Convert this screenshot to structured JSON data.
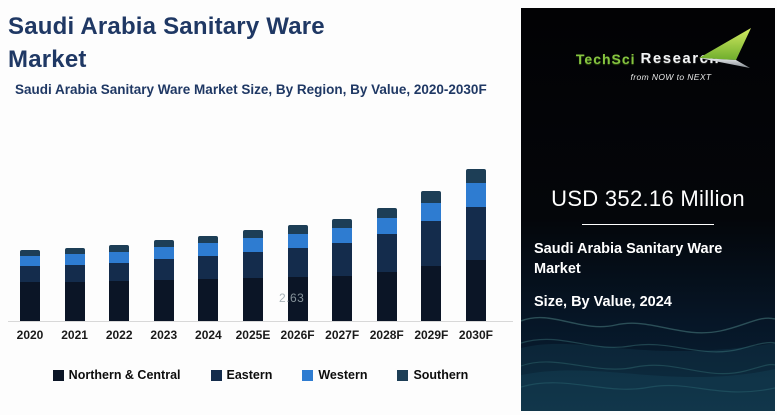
{
  "header": {
    "title_line1": "Saudi Arabia Sanitary Ware",
    "title_line2": "Market",
    "subtitle": "Saudi Arabia Sanitary Ware Market Size, By Region, By Value, 2020-2030F",
    "title_color": "#1f3864"
  },
  "chart_data": {
    "type": "bar",
    "stacked": true,
    "title": "Saudi Arabia Sanitary Ware Market Size, By Region, By Value, 2020-2030F",
    "unit": "USD Million",
    "categories": [
      "2020",
      "2021",
      "2022",
      "2023",
      "2024",
      "2025E",
      "2026F",
      "2027F",
      "2028F",
      "2029F",
      "2030F"
    ],
    "series": [
      {
        "name": "Northern & Central",
        "color": "#0b1526",
        "values": [
          162,
          162,
          166,
          170,
          174.16,
          178,
          182,
          186,
          203,
          228,
          253
        ]
      },
      {
        "name": "Eastern",
        "color": "#142c4c",
        "values": [
          66,
          70,
          75,
          87,
          95,
          108,
          120,
          137,
          157,
          186,
          220
        ]
      },
      {
        "name": "Western",
        "color": "#2e7cd1",
        "values": [
          41,
          46,
          46,
          50,
          54,
          58,
          58,
          62,
          66,
          75,
          99
        ]
      },
      {
        "name": "Southern",
        "color": "#1d3e56",
        "values": [
          25,
          25,
          29,
          29,
          29,
          33,
          37,
          37,
          41,
          50,
          58
        ]
      }
    ],
    "totals": [
      294,
      303,
      316,
      336,
      352.16,
      377,
      397,
      422,
      467,
      539,
      630
    ],
    "ylim": [
      0,
      700
    ],
    "grid": false,
    "legend_position": "bottom",
    "watermark_text": "2.63"
  },
  "stat_panel": {
    "value_text": "USD 352.16 Million",
    "caption_line1": "Saudi Arabia Sanitary Ware Market",
    "caption_line2": "Size, By Value, 2024",
    "background": "#000000",
    "wave_color": "#5fbdb3",
    "logo": {
      "brand_part1": "TechSci",
      "brand_part2": "Research",
      "tagline": "from NOW to NEXT",
      "green": "#86c440"
    }
  }
}
